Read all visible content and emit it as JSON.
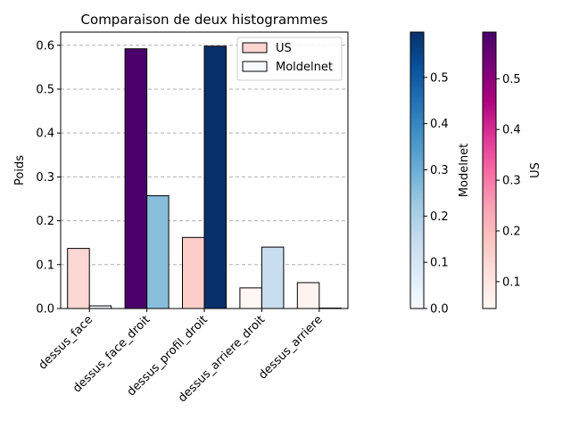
{
  "chart_data": {
    "type": "bar",
    "title": "Comparaison de deux histogrammes",
    "ylabel": "Poids",
    "xlabel": "",
    "ylim": [
      0,
      0.63
    ],
    "yticks": [
      "0.0",
      "0.1",
      "0.2",
      "0.3",
      "0.4",
      "0.5",
      "0.6"
    ],
    "grid": "y-dashed",
    "legend_position": "upper-right",
    "categories": [
      "dessus_face",
      "dessus_face_droit",
      "dessus_profil_droit",
      "dessus_arriere_droit",
      "dessus_arriere"
    ],
    "series": [
      {
        "name": "US",
        "values": [
          0.137,
          0.592,
          0.162,
          0.047,
          0.059
        ],
        "colormap": "RdPu"
      },
      {
        "name": "Moldelnet",
        "values": [
          0.006,
          0.257,
          0.598,
          0.14,
          0.001
        ],
        "colormap": "Blues"
      }
    ],
    "colorbars": [
      {
        "label": "Modelnet",
        "colormap": "Blues",
        "range": [
          0.0,
          0.598
        ],
        "ticks": [
          "0.0",
          "0.1",
          "0.2",
          "0.3",
          "0.4",
          "0.5"
        ]
      },
      {
        "label": "US",
        "colormap": "RdPu",
        "range": [
          0.047,
          0.592
        ],
        "ticks": [
          "0.1",
          "0.2",
          "0.3",
          "0.4",
          "0.5"
        ]
      }
    ]
  }
}
